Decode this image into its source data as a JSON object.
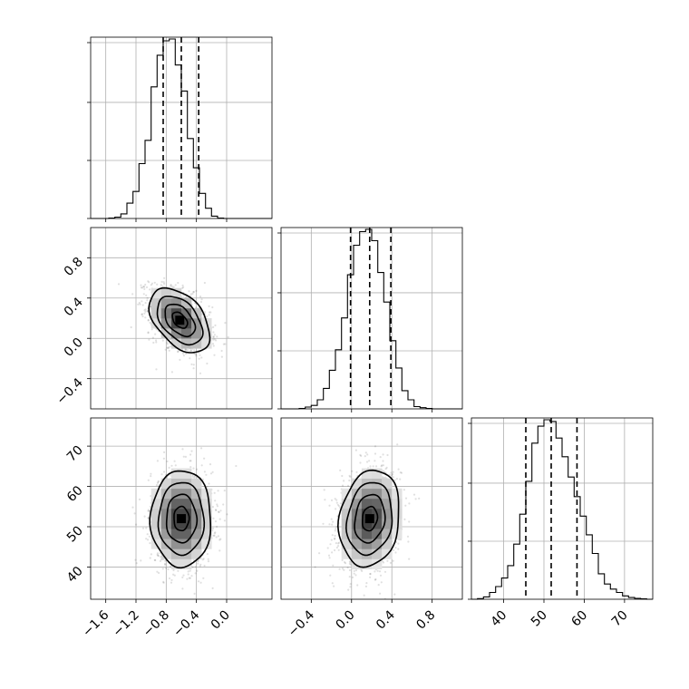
{
  "chart_data": {
    "type": "corner",
    "grid": true,
    "variables": [
      "",
      "",
      ""
    ],
    "axis_ranges": [
      [
        -1.8,
        0.6
      ],
      [
        -0.7,
        1.1
      ],
      [
        32,
        77
      ]
    ],
    "ticks": [
      [
        "−1.6",
        "−1.2",
        "−0.8",
        "−0.4",
        "0.0"
      ],
      [
        "−0.4",
        "0.0",
        "0.4",
        "0.8"
      ],
      [
        "40",
        "50",
        "60",
        "70"
      ]
    ],
    "tick_values": [
      [
        -1.6,
        -1.2,
        -0.8,
        -0.4,
        0.0
      ],
      [
        -0.4,
        0.0,
        0.4,
        0.8
      ],
      [
        40,
        50,
        60,
        70
      ]
    ],
    "marginals": [
      {
        "variable": 0,
        "bin_edges": [
          -1.8,
          -1.72,
          -1.64,
          -1.56,
          -1.48,
          -1.4,
          -1.32,
          -1.24,
          -1.16,
          -1.08,
          -1.0,
          -0.92,
          -0.84,
          -0.76,
          -0.68,
          -0.6,
          -0.52,
          -0.44,
          -0.36,
          -0.28,
          -0.2,
          -0.12,
          -0.04,
          0.04,
          0.12,
          0.2,
          0.28,
          0.36,
          0.44,
          0.52,
          0.6
        ],
        "counts": [
          0,
          0,
          0,
          1,
          3,
          10,
          33,
          58,
          118,
          168,
          283,
          351,
          382,
          386,
          330,
          274,
          172,
          109,
          54,
          22,
          5,
          1,
          0,
          0,
          0,
          0,
          0,
          0,
          0,
          0
        ],
        "quantiles": [
          -0.84,
          -0.6,
          -0.37
        ]
      },
      {
        "variable": 1,
        "bin_edges": [
          -0.7,
          -0.64,
          -0.58,
          -0.52,
          -0.46,
          -0.4,
          -0.34,
          -0.28,
          -0.22,
          -0.16,
          -0.1,
          -0.04,
          0.02,
          0.08,
          0.14,
          0.2,
          0.26,
          0.32,
          0.38,
          0.44,
          0.5,
          0.56,
          0.62,
          0.68,
          0.74,
          0.8,
          0.86,
          0.92,
          0.98,
          1.04,
          1.1
        ],
        "counts": [
          0,
          0,
          0,
          2,
          8,
          15,
          40,
          90,
          170,
          260,
          400,
          590,
          720,
          780,
          790,
          740,
          600,
          470,
          300,
          180,
          80,
          40,
          10,
          5,
          2,
          0,
          0,
          0,
          0,
          0
        ],
        "quantiles": [
          -0.01,
          0.18,
          0.39
        ]
      },
      {
        "variable": 2,
        "bin_edges": [
          32,
          33.5,
          35,
          36.5,
          38,
          39.5,
          41,
          42.5,
          44,
          45.5,
          47,
          48.5,
          50,
          51.5,
          53,
          54.5,
          56,
          57.5,
          59,
          60.5,
          62,
          63.5,
          65,
          66.5,
          68,
          69.5,
          71,
          72.5,
          74,
          75.5,
          77
        ],
        "counts": [
          0,
          4,
          14,
          40,
          75,
          125,
          198,
          325,
          501,
          695,
          920,
          1020,
          1058,
          1048,
          950,
          840,
          720,
          605,
          490,
          380,
          270,
          150,
          90,
          60,
          40,
          20,
          10,
          5,
          2,
          0
        ],
        "quantiles": [
          45.5,
          51.8,
          58.2
        ]
      }
    ],
    "joint_distributions": [
      {
        "x": 0,
        "y": 1,
        "center": [
          -0.62,
          0.18
        ],
        "sigma": [
          0.2,
          0.16
        ],
        "correlation": -0.45
      },
      {
        "x": 0,
        "y": 2,
        "center": [
          -0.6,
          52
        ],
        "sigma": [
          0.2,
          6
        ],
        "correlation": 0.0
      },
      {
        "x": 1,
        "y": 2,
        "center": [
          0.18,
          52
        ],
        "sigma": [
          0.15,
          6
        ],
        "correlation": 0.15
      }
    ],
    "contour_levels_sigma": [
      0.5,
      1.0,
      1.5,
      2.0
    ]
  }
}
